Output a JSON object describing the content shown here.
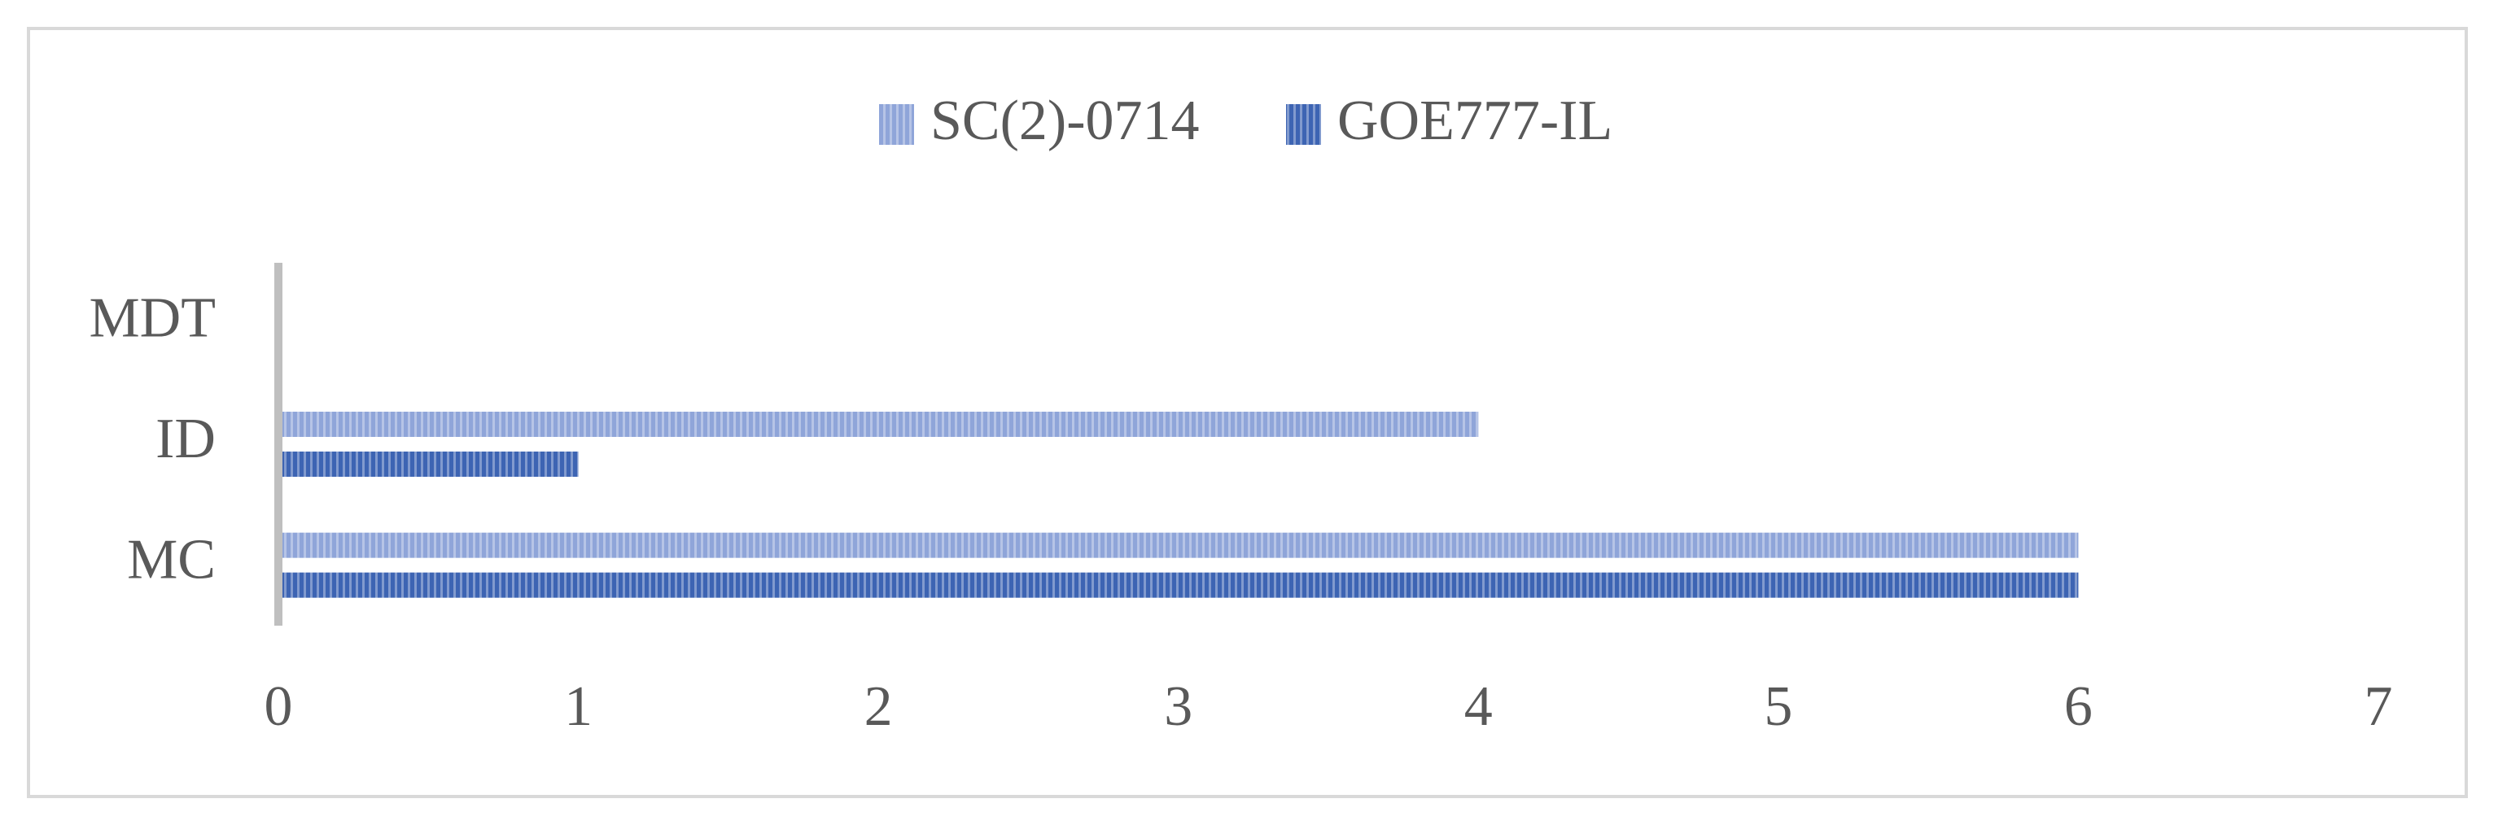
{
  "chart_data": {
    "type": "hbar",
    "categories": [
      "MC",
      "ID",
      "MDT"
    ],
    "series": [
      {
        "name": "SC(2)-0714",
        "color": "#8fa5d9",
        "values": [
          6,
          4,
          0
        ]
      },
      {
        "name": "GOE777-IL",
        "color": "#3d64b3",
        "values": [
          6,
          1,
          0
        ]
      }
    ],
    "xlim": [
      0,
      7
    ],
    "xticks": [
      0,
      1,
      2,
      3,
      4,
      5,
      6,
      7
    ],
    "legend": "top",
    "grid": false
  }
}
